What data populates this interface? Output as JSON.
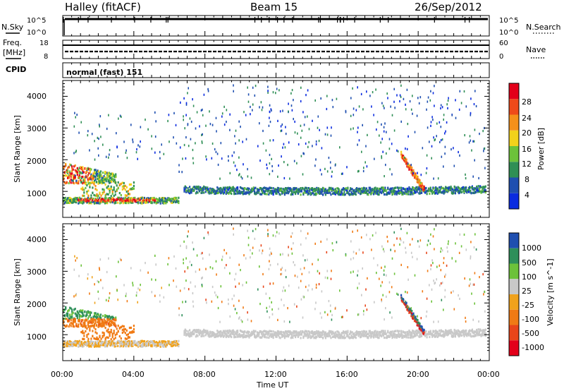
{
  "header": {
    "station": "Halley (fitACF)",
    "beam": "Beam 15",
    "date": "26/Sep/2012"
  },
  "nsky_panel": {
    "left_label": "N.Sky",
    "right_label": "N.Search",
    "left_ticks": [
      "10^5",
      "10^0"
    ],
    "right_ticks": [
      "10^5",
      "10^0"
    ]
  },
  "freq_panel": {
    "left_label_1": "Freq.",
    "left_label_2": "[MHz]",
    "right_label": "Nave",
    "left_ticks": [
      "18",
      "8"
    ],
    "right_ticks": [
      "60",
      "0"
    ]
  },
  "cpid_panel": {
    "label": "CPID",
    "mode_text": "normal (fast) 151"
  },
  "power_panel": {
    "ylabel": "Slant Range [km]",
    "colorbar_label": "Power [dB]",
    "yticks": [
      "1000",
      "2000",
      "3000",
      "4000"
    ],
    "colorbar_ticks": [
      "4",
      "8",
      "12",
      "16",
      "20",
      "24",
      "28"
    ],
    "colorbar_colors": [
      "#0a2be0",
      "#1f4fb0",
      "#2f8f55",
      "#6cc23a",
      "#f2d21b",
      "#f5901a",
      "#ef4a1a",
      "#e3001a"
    ]
  },
  "velocity_panel": {
    "ylabel": "Slant Range [km]",
    "colorbar_label": "Velocity [m s^-1]",
    "yticks": [
      "1000",
      "2000",
      "3000",
      "4000"
    ],
    "colorbar_ticks": [
      "1000",
      "500",
      "100",
      "25",
      "-25",
      "-100",
      "-500",
      "-1000"
    ],
    "colorbar_colors": [
      "#1f4fb0",
      "#2e8f5a",
      "#6cc23a",
      "#c8c8c8",
      "#f0a21c",
      "#f07a14",
      "#e8451a",
      "#e3001a"
    ]
  },
  "xaxis": {
    "label": "Time UT",
    "ticks": [
      "00:00",
      "04:00",
      "08:00",
      "12:00",
      "16:00",
      "20:00",
      "00:00"
    ]
  },
  "chart_data": {
    "type": "heatmap",
    "title": "Halley (fitACF) Beam 15 26/Sep/2012",
    "xlabel": "Time UT",
    "ylabel": "Slant Range [km]",
    "xlim_hours": [
      0,
      24
    ],
    "ylim_km": [
      180,
      4500
    ],
    "power_dB_range": [
      3,
      30
    ],
    "velocity_range_ms": [
      -1000,
      1000
    ],
    "cpid": "normal (fast) 151",
    "features": [
      {
        "name": "near-range band",
        "hours": [
          0.0,
          6.5
        ],
        "range_km": [
          600,
          800
        ],
        "power_dB": 22,
        "velocity_ms": -20
      },
      {
        "name": "early mid-range cluster",
        "hours": [
          0.0,
          3.0
        ],
        "range_km": [
          1300,
          1900
        ],
        "power_dB": 22,
        "velocity_ms": 200
      },
      {
        "name": "mid-range arc",
        "hours": [
          6.8,
          23.8
        ],
        "range_km": [
          900,
          1200
        ],
        "power_dB": 10,
        "velocity_ms": 0
      },
      {
        "name": "steep feature near 20:00",
        "hours": [
          19.0,
          20.3
        ],
        "range_km": [
          1100,
          2200
        ],
        "power_dB": 22,
        "velocity_ms": 700
      }
    ]
  }
}
